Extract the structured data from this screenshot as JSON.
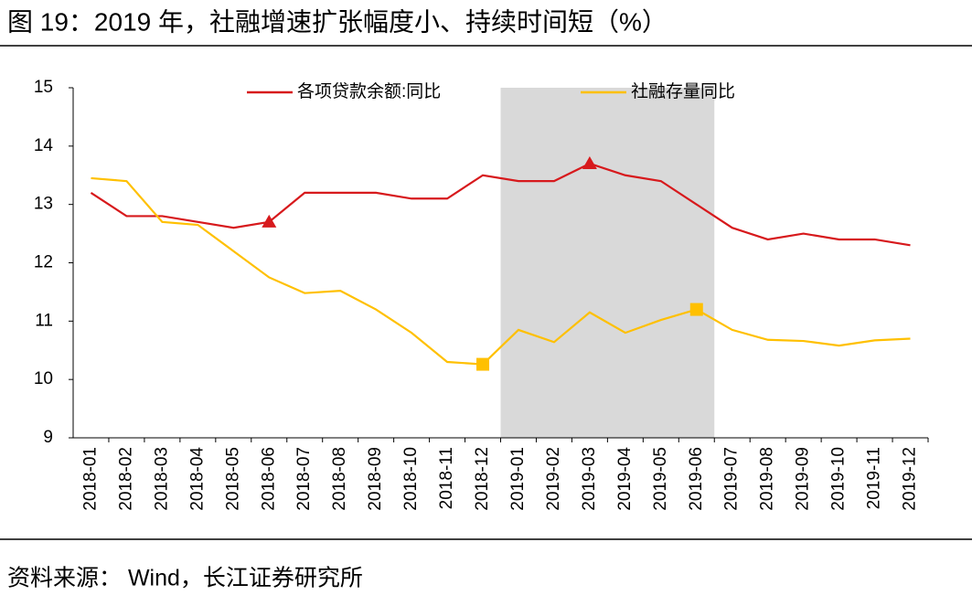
{
  "chart_data": {
    "type": "line",
    "title": "图 19：2019 年，社融增速扩张幅度小、持续时间短（%）",
    "source": "资料来源：  Wind，长江证券研究所",
    "categories": [
      "2018-01",
      "2018-02",
      "2018-03",
      "2018-04",
      "2018-05",
      "2018-06",
      "2018-07",
      "2018-08",
      "2018-09",
      "2018-10",
      "2018-11",
      "2018-12",
      "2019-01",
      "2019-02",
      "2019-03",
      "2019-04",
      "2019-05",
      "2019-06",
      "2019-07",
      "2019-08",
      "2019-09",
      "2019-10",
      "2019-11",
      "2019-12"
    ],
    "series": [
      {
        "name": "各项贷款余额:同比",
        "color": "#d7191c",
        "marker": "triangle",
        "markers": [
          5,
          14
        ],
        "values": [
          13.2,
          12.8,
          12.8,
          12.7,
          12.6,
          12.7,
          13.2,
          13.2,
          13.2,
          13.1,
          13.1,
          13.5,
          13.4,
          13.4,
          13.7,
          13.5,
          13.4,
          13.0,
          12.6,
          12.4,
          12.5,
          12.4,
          12.4,
          12.3
        ]
      },
      {
        "name": "社融存量同比",
        "color": "#ffc000",
        "marker": "square",
        "markers": [
          11,
          17
        ],
        "values": [
          13.45,
          13.4,
          12.7,
          12.65,
          12.2,
          11.75,
          11.48,
          11.52,
          11.2,
          10.8,
          10.3,
          10.26,
          10.85,
          10.64,
          11.15,
          10.8,
          11.02,
          11.2,
          10.85,
          10.68,
          10.66,
          10.58,
          10.67,
          10.7
        ]
      }
    ],
    "shaded_range": [
      "2019-01",
      "2019-06"
    ],
    "shade_color": "#d9d9d9",
    "ylim": [
      9,
      15
    ],
    "yticks": [
      9,
      10,
      11,
      12,
      13,
      14,
      15
    ]
  }
}
